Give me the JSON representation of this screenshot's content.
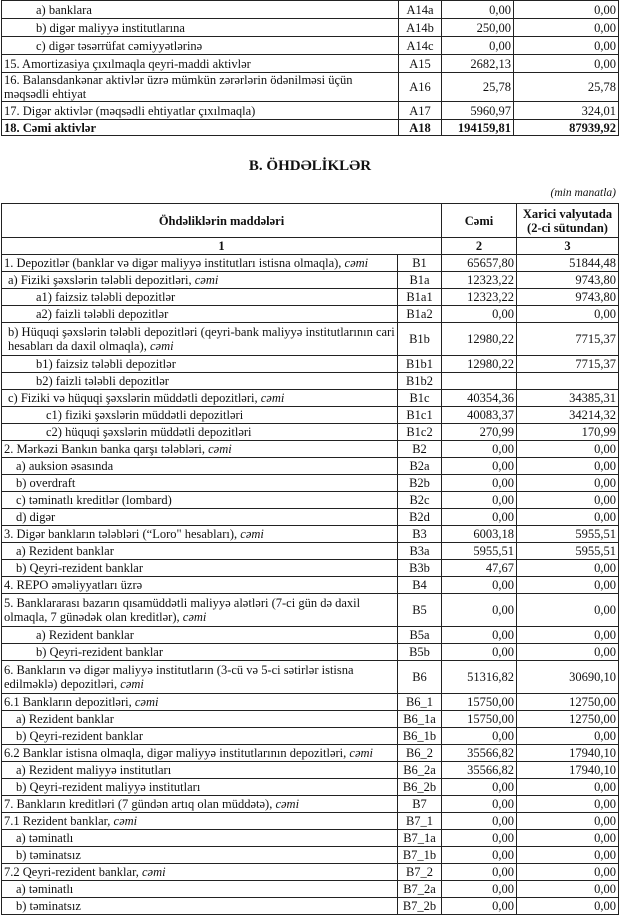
{
  "top_rows": [
    {
      "label": "a) banklara",
      "indent": "i2",
      "code": "A14a",
      "total": "0,00",
      "foreign": "0,00"
    },
    {
      "label": "b) digər maliyyə institutlarına",
      "indent": "i2",
      "code": "A14b",
      "total": "250,00",
      "foreign": "0,00"
    },
    {
      "label": "c) digər təsərrüfat cəmiyyətlərinə",
      "indent": "i2",
      "code": "A14c",
      "total": "0,00",
      "foreign": "0,00"
    },
    {
      "label": "15. Amortizasiya çıxılmaqla qeyri-maddi aktivlər",
      "indent": "",
      "code": "A15",
      "total": "2682,13",
      "foreign": "0,00"
    },
    {
      "label": "16. Balansdankənar aktivlər üzrə mümkün zərərlərin ödənilməsi üçün məqsədli ehtiyat",
      "indent": "",
      "code": "A16",
      "total": "25,78",
      "foreign": "25,78",
      "double": true
    },
    {
      "label": "17. Digər aktivlər (məqsədli ehtiyatlar çıxılmaqla)",
      "indent": "",
      "code": "A17",
      "total": "5960,97",
      "foreign": "324,01"
    },
    {
      "label": "18. Cəmi aktivlər",
      "indent": "",
      "code": "A18",
      "total": "194159,81",
      "foreign": "87939,92",
      "bold": true
    }
  ],
  "section_title": "B. ÖHDƏLİKLƏR",
  "unit_note": "(min manatla)",
  "header": {
    "items": "Öhdəliklərin maddələri",
    "total": "Cəmi",
    "foreign": "Xarici valyutada (2-ci sütundan)",
    "n1": "1",
    "n2": "2",
    "n3": "3"
  },
  "rows": [
    {
      "label": "1. Depozitlər (banklar və digər maliyyə institutları istisna olmaqla), ",
      "suffix": "cəmi",
      "indent": "",
      "code": "B1",
      "total": "65657,80",
      "foreign": "51844,48"
    },
    {
      "label": "a)  Fiziki şəxslərin tələbli depozitləri, ",
      "suffix": "cəmi",
      "indent": "i0b",
      "code": "B1a",
      "total": "12323,22",
      "foreign": "9743,80"
    },
    {
      "label": "a1) faizsiz tələbli depozitlər",
      "indent": "i2",
      "code": "B1a1",
      "total": "12323,22",
      "foreign": "9743,80"
    },
    {
      "label": "a2) faizli tələbli depozitlər",
      "indent": "i2",
      "code": "B1a2",
      "total": "0,00",
      "foreign": "0,00"
    },
    {
      "label": "b) Hüquqi şəxslərin tələbli depozitləri (qeyri-bank maliyyə institutlarının cari hesabları da daxil olmaqla), ",
      "suffix": "cəmi",
      "indent": "i0b",
      "code": "B1b",
      "total": "12980,22",
      "foreign": "7715,37",
      "double": true
    },
    {
      "label": "b1) faizsiz tələbli depozitlər",
      "indent": "i2",
      "code": "B1b1",
      "total": "12980,22",
      "foreign": "7715,37"
    },
    {
      "label": "b2) faizli tələbli depozitlər",
      "indent": "i2",
      "code": "B1b2",
      "total": "",
      "foreign": ""
    },
    {
      "label": "c) Fiziki və hüquqi şəxslərin müddətli depozitləri, ",
      "suffix": "cəmi",
      "indent": "i0b",
      "code": "B1c",
      "total": "40354,36",
      "foreign": "34385,31"
    },
    {
      "label": "c1) fiziki şəxslərin müddətli depozitləri",
      "indent": "i3",
      "code": "B1c1",
      "total": "40083,37",
      "foreign": "34214,32"
    },
    {
      "label": "c2) hüquqi şəxslərin müddətli depozitləri",
      "indent": "i3",
      "code": "B1c2",
      "total": "270,99",
      "foreign": "170,99"
    },
    {
      "label": "2. Mərkəzi Bankın banka qarşı tələbləri, ",
      "suffix": "cəmi",
      "indent": "",
      "code": "B2",
      "total": "0,00",
      "foreign": "0,00"
    },
    {
      "label": "a) auksion əsasında",
      "indent": "i1",
      "code": "B2a",
      "total": "0,00",
      "foreign": "0,00"
    },
    {
      "label": "b) overdraft",
      "indent": "i1",
      "code": "B2b",
      "total": "0,00",
      "foreign": "0,00"
    },
    {
      "label": "c) təminatlı kreditlər (lombard)",
      "indent": "i1",
      "code": "B2c",
      "total": "0,00",
      "foreign": "0,00"
    },
    {
      "label": "d) digər",
      "indent": "i1",
      "code": "B2d",
      "total": "0,00",
      "foreign": "0,00"
    },
    {
      "label": "3. Digər bankların tələbləri (“Loro\" hesabları), ",
      "suffix": "cəmi",
      "indent": "",
      "code": "B3",
      "total": "6003,18",
      "foreign": "5955,51"
    },
    {
      "label": "a) Rezident banklar",
      "indent": "i1",
      "code": "B3a",
      "total": "5955,51",
      "foreign": "5955,51"
    },
    {
      "label": "b) Qeyri-rezident banklar",
      "indent": "i1",
      "code": "B3b",
      "total": "47,67",
      "foreign": "0,00"
    },
    {
      "label": "4. REPO əməliyyatları  üzrə",
      "indent": "",
      "code": "B4",
      "total": "0,00",
      "foreign": "0,00"
    },
    {
      "label": "5. Banklararası bazarın qısamüddətli maliyyə alətləri (7-ci gün də daxil olmaqla, 7 günədək olan kreditlər), ",
      "suffix": "cəmi",
      "indent": "",
      "code": "B5",
      "total": "0,00",
      "foreign": "0,00",
      "double": true
    },
    {
      "label": "a) Rezident banklar",
      "indent": "i2",
      "code": "B5a",
      "total": "0,00",
      "foreign": "0,00"
    },
    {
      "label": "b) Qeyri-rezident banklar",
      "indent": "i2",
      "code": "B5b",
      "total": "0,00",
      "foreign": "0,00"
    },
    {
      "label": "6. Bankların və digər maliyyə institutların (3-cü və 5-ci sətirlər istisna edilməklə) depozitləri, ",
      "suffix": "cəmi",
      "indent": "",
      "code": "B6",
      "total": "51316,82",
      "foreign": "30690,10",
      "double": true
    },
    {
      "label": "6.1  Bankların depozitləri, ",
      "suffix": "cəmi",
      "indent": "",
      "code": "B6_1",
      "total": "15750,00",
      "foreign": "12750,00"
    },
    {
      "label": "a) Rezident banklar",
      "indent": "i1",
      "code": "B6_1a",
      "total": "15750,00",
      "foreign": "12750,00"
    },
    {
      "label": "b) Qeyri-rezident banklar",
      "indent": "i1",
      "code": "B6_1b",
      "total": "0,00",
      "foreign": "0,00"
    },
    {
      "label": "6.2 Banklar istisna olmaqla, digər maliyyə institutlarının depozitləri, ",
      "suffix": "cəmi",
      "indent": "",
      "code": "B6_2",
      "total": "35566,82",
      "foreign": "17940,10"
    },
    {
      "label": "a) Rezident maliyyə institutları",
      "indent": "i1",
      "code": "B6_2a",
      "total": "35566,82",
      "foreign": "17940,10"
    },
    {
      "label": "b) Qeyri-rezident maliyyə institutları",
      "indent": "i1",
      "code": "B6_2b",
      "total": "0,00",
      "foreign": "0,00"
    },
    {
      "label": "7. Bankların kreditləri (7 gündən artıq olan müddətə), ",
      "suffix": "cəmi",
      "indent": "",
      "code": "B7",
      "total": "0,00",
      "foreign": "0,00"
    },
    {
      "label": "7.1 Rezident banklar, ",
      "suffix": "cəmi",
      "indent": "",
      "code": "B7_1",
      "total": "0,00",
      "foreign": "0,00"
    },
    {
      "label": "a) təminatlı",
      "indent": "i1",
      "code": "B7_1a",
      "total": "0,00",
      "foreign": "0,00"
    },
    {
      "label": "b) təminatsız",
      "indent": "i1",
      "code": "B7_1b",
      "total": "0,00",
      "foreign": "0,00"
    },
    {
      "label": "7.2 Qeyri-rezident banklar, ",
      "suffix": "cəmi",
      "indent": "",
      "code": "B7_2",
      "total": "0,00",
      "foreign": "0,00"
    },
    {
      "label": "a) təminatlı",
      "indent": "i1",
      "code": "B7_2a",
      "total": "0,00",
      "foreign": "0,00"
    },
    {
      "label": "b) təminatsız",
      "indent": "i1",
      "code": "B7_2b",
      "total": "0,00",
      "foreign": "0,00"
    }
  ]
}
